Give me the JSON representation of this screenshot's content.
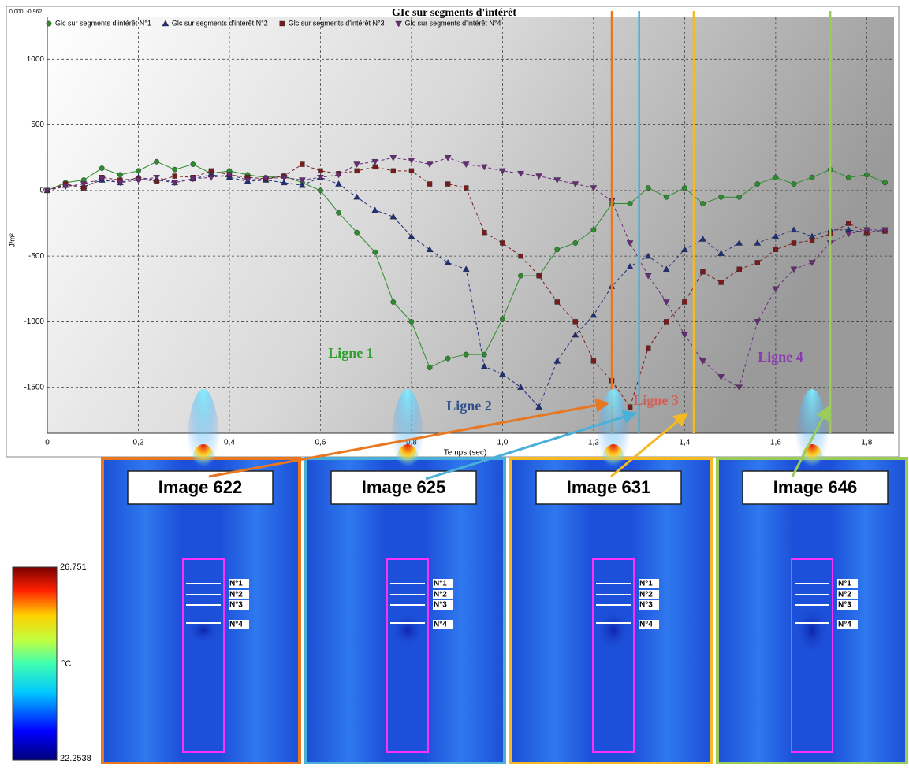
{
  "chart_data": {
    "type": "line",
    "title": "GIc sur segments d'intérêt",
    "corner_label": "0,000; -0,962",
    "x_label": "Temps (sec)",
    "y_label": "J/m²",
    "x": [
      0,
      0.04,
      0.08,
      0.12,
      0.16,
      0.2,
      0.24,
      0.28,
      0.32,
      0.36,
      0.4,
      0.44,
      0.48,
      0.52,
      0.56,
      0.6,
      0.64,
      0.68,
      0.72,
      0.76,
      0.8,
      0.84,
      0.88,
      0.92,
      0.96,
      1.0,
      1.04,
      1.08,
      1.12,
      1.16,
      1.2,
      1.24,
      1.28,
      1.32,
      1.36,
      1.4,
      1.44,
      1.48,
      1.52,
      1.56,
      1.6,
      1.64,
      1.68,
      1.72,
      1.76,
      1.8,
      1.84
    ],
    "series": [
      {
        "name": "Glc sur segments d'intérêt N°1",
        "color": "#2e8b2e",
        "marker": "circle",
        "linestyle": "solid",
        "values": [
          0,
          60,
          80,
          170,
          120,
          150,
          220,
          160,
          200,
          130,
          150,
          120,
          100,
          110,
          60,
          0,
          -170,
          -320,
          -470,
          -850,
          -1000,
          -1350,
          -1280,
          -1250,
          -1250,
          -980,
          -650,
          -650,
          -450,
          -400,
          -300,
          -100,
          -100,
          20,
          -50,
          20,
          -100,
          -50,
          -50,
          50,
          100,
          50,
          100,
          160,
          100,
          120,
          60
        ]
      },
      {
        "name": "Glc sur segments d'intérêt N°2",
        "color": "#1f2f7a",
        "marker": "triangle",
        "linestyle": "dashed",
        "values": [
          0,
          40,
          30,
          80,
          60,
          100,
          80,
          60,
          90,
          120,
          100,
          70,
          80,
          60,
          40,
          100,
          50,
          -50,
          -150,
          -200,
          -350,
          -450,
          -550,
          -600,
          -1340,
          -1400,
          -1500,
          -1650,
          -1300,
          -1100,
          -950,
          -730,
          -580,
          -500,
          -600,
          -450,
          -370,
          -480,
          -400,
          -400,
          -350,
          -300,
          -350,
          -300,
          -300,
          -320,
          -300
        ]
      },
      {
        "name": "Glc sur segments d'intérêt N°3",
        "color": "#7a1a1a",
        "marker": "square",
        "linestyle": "dashed",
        "values": [
          0,
          50,
          20,
          100,
          80,
          90,
          70,
          110,
          100,
          150,
          120,
          100,
          90,
          110,
          200,
          150,
          130,
          150,
          180,
          150,
          150,
          50,
          50,
          20,
          -320,
          -400,
          -500,
          -650,
          -850,
          -1000,
          -1300,
          -1450,
          -1650,
          -1200,
          -1000,
          -850,
          -620,
          -700,
          -600,
          -550,
          -450,
          -400,
          -380,
          -330,
          -250,
          -320,
          -310
        ]
      },
      {
        "name": "Glc sur segments d'intérêt N°4",
        "color": "#6a2a7a",
        "marker": "triangle-down",
        "linestyle": "dashed",
        "values": [
          0,
          30,
          50,
          90,
          60,
          80,
          100,
          60,
          90,
          100,
          120,
          80,
          90,
          100,
          80,
          100,
          120,
          200,
          220,
          250,
          230,
          200,
          250,
          200,
          180,
          150,
          130,
          110,
          80,
          50,
          20,
          -80,
          -400,
          -650,
          -850,
          -1100,
          -1300,
          -1420,
          -1500,
          -1000,
          -750,
          -600,
          -550,
          -400,
          -330,
          -300,
          -300
        ]
      }
    ],
    "xlim": [
      0,
      1.86
    ],
    "ylim": [
      -1850,
      1320
    ],
    "xticks": [
      0,
      {
        "value": 0.2,
        "label": "0,2"
      },
      {
        "value": 0.4,
        "label": "0,4"
      },
      {
        "value": 0.6,
        "label": "0,6"
      },
      {
        "value": 0.8,
        "label": "0,8"
      },
      {
        "value": 1.0,
        "label": "1,0"
      },
      {
        "value": 1.2,
        "label": "1,2"
      },
      {
        "value": 1.4,
        "label": "1,4"
      },
      {
        "value": 1.6,
        "label": "1,6"
      },
      {
        "value": 1.8,
        "label": "1,8"
      }
    ],
    "yticks": [
      -1500,
      -1000,
      -500,
      0,
      500,
      1000
    ],
    "grid": true,
    "vlines": [
      {
        "x": 1.24,
        "color": "#e87722"
      },
      {
        "x": 1.3,
        "color": "#4ab0d8"
      },
      {
        "x": 1.42,
        "color": "#f5b921"
      },
      {
        "x": 1.72,
        "color": "#9bcc5a"
      }
    ],
    "annotations": [
      {
        "text": "Ligne 1",
        "color": "#2ea02e"
      },
      {
        "text": "Ligne 2",
        "color": "#2f4f8a"
      },
      {
        "text": "Ligne 3",
        "color": "#d0605a"
      },
      {
        "text": "Ligne 4",
        "color": "#8a3ab0"
      }
    ]
  },
  "images": [
    {
      "label": "Image 622",
      "color": "#e87722"
    },
    {
      "label": "Image 625",
      "color": "#4ab0d8"
    },
    {
      "label": "Image 631",
      "color": "#f5b921"
    },
    {
      "label": "Image 646",
      "color": "#9bcc5a"
    }
  ],
  "segments": [
    "N°1",
    "N°2",
    "N°3",
    "N°4"
  ],
  "colorbar": {
    "max": "26.751",
    "min": "22.2538",
    "unit": "°C"
  }
}
